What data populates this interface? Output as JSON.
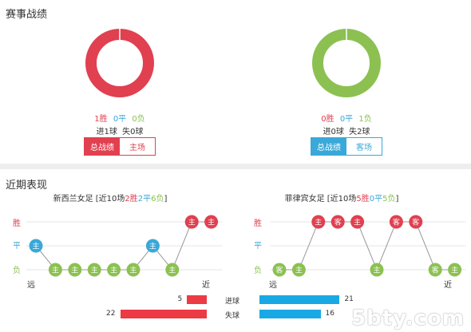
{
  "match_record": {
    "title": "赛事战绩",
    "left": {
      "win_text": "1胜",
      "draw_text": "0平",
      "loss_text": "0负",
      "goals_text": "进1球  失0球",
      "win_fraction": 1.0,
      "draw_fraction": 0.0,
      "loss_fraction": 0.0,
      "buttons": [
        "总战绩",
        "主场"
      ]
    },
    "right": {
      "win_text": "0胜",
      "draw_text": "0平",
      "loss_text": "1负",
      "goals_text": "进0球  失2球",
      "win_fraction": 0.0,
      "draw_fraction": 0.0,
      "loss_fraction": 1.0,
      "buttons": [
        "总战绩",
        "客场"
      ]
    }
  },
  "recent_form": {
    "title": "近期表现",
    "left": {
      "team_prefix": "新西兰女足 [近10场",
      "wins": "2胜",
      "draws": "2平",
      "losses": "6负",
      "suffix": "]",
      "y_labels": [
        "胜",
        "平",
        "负"
      ],
      "far_label": "远",
      "near_label": "近",
      "results": [
        "平",
        "负",
        "负",
        "负",
        "负",
        "负",
        "平",
        "负",
        "胜",
        "胜"
      ],
      "venues": [
        "主",
        "主",
        "主",
        "主",
        "主",
        "主",
        "主",
        "主",
        "主",
        "主"
      ]
    },
    "right": {
      "team_prefix": "菲律宾女足 [近10场",
      "wins": "5胜",
      "draws": "0平",
      "losses": "5负",
      "suffix": "]",
      "y_labels": [
        "胜",
        "平",
        "负"
      ],
      "far_label": "远",
      "near_label": "近",
      "results": [
        "负",
        "负",
        "胜",
        "胜",
        "胜",
        "负",
        "胜",
        "胜",
        "负",
        "负"
      ],
      "venues": [
        "客",
        "主",
        "主",
        "客",
        "主",
        "主",
        "客",
        "客",
        "客",
        "主"
      ]
    }
  },
  "goal_bars": {
    "rows": [
      {
        "label": "进球",
        "left": 5,
        "right": 21
      },
      {
        "label": "失球",
        "left": 22,
        "right": 16
      }
    ],
    "max": 22
  },
  "watermark": "5bty.com",
  "colors": {
    "win": "#e04050",
    "draw": "#3aa8d8",
    "loss": "#8cc152",
    "bar_left": "#ec3b45",
    "bar_right": "#18a9e5"
  }
}
